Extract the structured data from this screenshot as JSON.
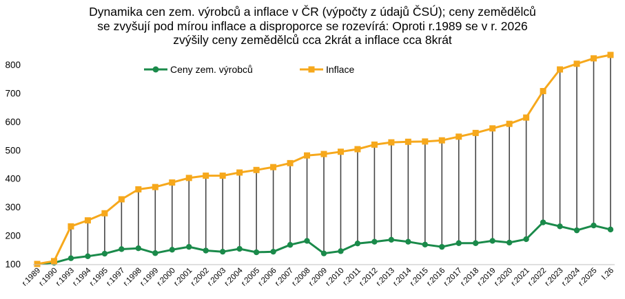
{
  "chart_data": {
    "type": "line",
    "title_lines": [
      "Dynamika cen zem. výrobců  a inflace v ČR (výpočty z údajů ČSÚ); ceny zemědělců",
      "se zvyšují  pod mírou inflace a disproporce se rozevírá:   Oproti r.1989 se v r. 2026",
      "zvýšily ceny zemědělců cca 2krát a inflace cca 8krát"
    ],
    "categories": [
      "r.1989",
      "r.1990",
      "r.1993",
      "r.1994",
      "r.1995",
      "r.1997",
      "r.1998",
      "r.1999",
      "r.2000",
      "r.2001",
      "r.2002",
      "r.2003",
      "r.2004",
      "r.2005",
      "r.2006",
      "r.2007",
      "r.2008",
      "r.2009",
      "r.2010",
      "r.2011",
      "r.2012",
      "r.2013",
      "r.2014",
      "r.2015",
      "r.2016",
      "r.2017",
      "r.2018",
      "r.2019",
      "r.2020",
      "r.2021",
      "r.2022",
      "r.2023",
      "r.2024",
      "r.2025",
      "I.26"
    ],
    "series": [
      {
        "name": "Ceny zem. výrobců",
        "color": "#1a8a4a",
        "marker": "circle",
        "values": [
          100,
          104,
          120,
          127,
          136,
          152,
          155,
          138,
          150,
          160,
          147,
          143,
          153,
          141,
          143,
          167,
          181,
          137,
          145,
          172,
          178,
          185,
          178,
          168,
          160,
          173,
          173,
          181,
          175,
          187,
          246,
          232,
          218,
          235,
          221
        ]
      },
      {
        "name": "Inflace",
        "color": "#f6a81c",
        "marker": "square",
        "values": [
          100,
          110,
          232,
          253,
          278,
          327,
          362,
          370,
          386,
          402,
          410,
          410,
          421,
          430,
          440,
          454,
          481,
          486,
          494,
          503,
          519,
          527,
          529,
          530,
          534,
          547,
          560,
          576,
          592,
          614,
          707,
          783,
          803,
          822,
          834
        ]
      }
    ],
    "drop_lines": true,
    "drop_line_color": "#444444",
    "yticks": [
      100,
      200,
      300,
      400,
      500,
      600,
      700,
      800
    ],
    "ylim": [
      100,
      840
    ],
    "grid": false,
    "legend_position": "top-center"
  }
}
